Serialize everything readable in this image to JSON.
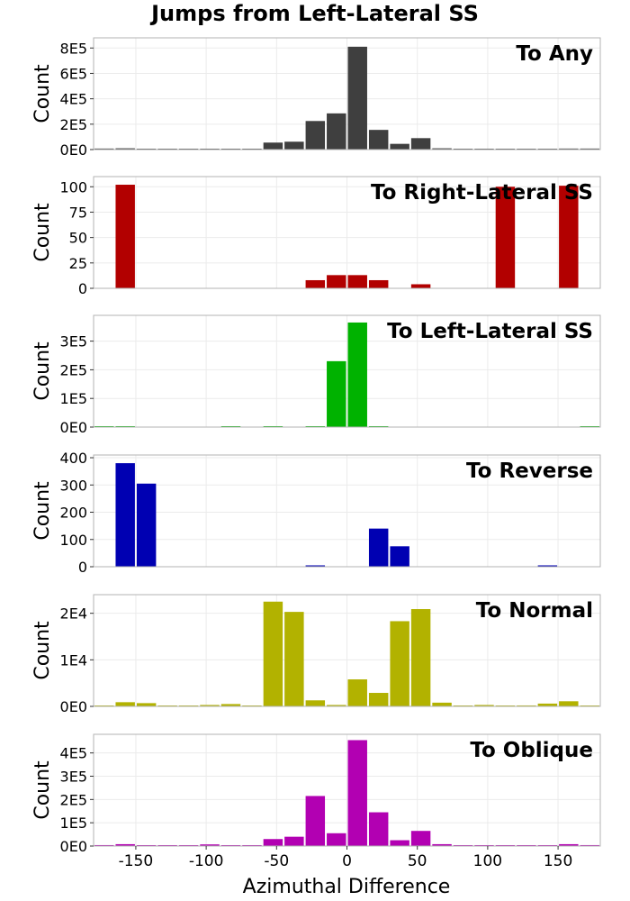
{
  "figure": {
    "title": "Jumps from Left-Lateral SS",
    "xlabel": "Azimuthal Difference",
    "ylabel": "Count",
    "xticks": [
      -150,
      -100,
      -50,
      0,
      50,
      100,
      150
    ],
    "xlim": [
      -180,
      180
    ]
  },
  "chart_data": [
    {
      "type": "bar",
      "title": "To Any",
      "color": "#3f3f3f",
      "bin_width": 15,
      "ylim": [
        0,
        880000
      ],
      "yticks": [
        0,
        200000,
        400000,
        600000,
        800000
      ],
      "ytick_labels": [
        "0E0",
        "2E5",
        "4E5",
        "6E5",
        "8E5"
      ],
      "x": [
        -172.5,
        -157.5,
        -142.5,
        -127.5,
        -112.5,
        -97.5,
        -82.5,
        -67.5,
        -52.5,
        -37.5,
        -22.5,
        -7.5,
        7.5,
        22.5,
        37.5,
        52.5,
        67.5,
        82.5,
        97.5,
        112.5,
        127.5,
        142.5,
        157.5,
        172.5
      ],
      "values": [
        8000,
        10000,
        4000,
        2000,
        2000,
        6000,
        3000,
        3000,
        55000,
        62000,
        225000,
        285000,
        810000,
        155000,
        45000,
        90000,
        10000,
        3000,
        2000,
        2000,
        2000,
        2000,
        8000,
        8000
      ]
    },
    {
      "type": "bar",
      "title": "To Right-Lateral SS",
      "color": "#b20000",
      "bin_width": 15,
      "ylim": [
        0,
        110
      ],
      "yticks": [
        0,
        25,
        50,
        75,
        100
      ],
      "ytick_labels": [
        "0",
        "25",
        "50",
        "75",
        "100"
      ],
      "x": [
        -172.5,
        -157.5,
        -142.5,
        -127.5,
        -112.5,
        -97.5,
        -82.5,
        -67.5,
        -52.5,
        -37.5,
        -22.5,
        -7.5,
        7.5,
        22.5,
        37.5,
        52.5,
        67.5,
        82.5,
        97.5,
        112.5,
        127.5,
        142.5,
        157.5,
        172.5
      ],
      "values": [
        0,
        102,
        0,
        0,
        0,
        0,
        0,
        0,
        0,
        0,
        8,
        13,
        13,
        8,
        0,
        4,
        0,
        0,
        0,
        100,
        0,
        0,
        101,
        0
      ]
    },
    {
      "type": "bar",
      "title": "To Left-Lateral SS",
      "color": "#00b200",
      "bin_width": 15,
      "ylim": [
        0,
        390000
      ],
      "yticks": [
        0,
        100000,
        200000,
        300000
      ],
      "ytick_labels": [
        "0E0",
        "1E5",
        "2E5",
        "3E5"
      ],
      "x": [
        -172.5,
        -157.5,
        -142.5,
        -127.5,
        -112.5,
        -97.5,
        -82.5,
        -67.5,
        -52.5,
        -37.5,
        -22.5,
        -7.5,
        7.5,
        22.5,
        37.5,
        52.5,
        67.5,
        82.5,
        97.5,
        112.5,
        127.5,
        142.5,
        157.5,
        172.5
      ],
      "values": [
        3000,
        1000,
        0,
        0,
        0,
        0,
        1000,
        0,
        1000,
        0,
        2000,
        230000,
        365000,
        2000,
        0,
        0,
        0,
        0,
        0,
        0,
        0,
        0,
        0,
        3000
      ]
    },
    {
      "type": "bar",
      "title": "To Reverse",
      "color": "#0000b2",
      "bin_width": 15,
      "ylim": [
        0,
        410
      ],
      "yticks": [
        0,
        100,
        200,
        300,
        400
      ],
      "ytick_labels": [
        "0",
        "100",
        "200",
        "300",
        "400"
      ],
      "x": [
        -172.5,
        -157.5,
        -142.5,
        -127.5,
        -112.5,
        -97.5,
        -82.5,
        -67.5,
        -52.5,
        -37.5,
        -22.5,
        -7.5,
        7.5,
        22.5,
        37.5,
        52.5,
        67.5,
        82.5,
        97.5,
        112.5,
        127.5,
        142.5,
        157.5,
        172.5
      ],
      "values": [
        0,
        380,
        305,
        0,
        0,
        0,
        0,
        0,
        0,
        0,
        5,
        0,
        0,
        140,
        75,
        0,
        0,
        0,
        0,
        0,
        0,
        5,
        0,
        0
      ]
    },
    {
      "type": "bar",
      "title": "To Normal",
      "color": "#b2b200",
      "bin_width": 15,
      "ylim": [
        0,
        24000
      ],
      "yticks": [
        0,
        10000,
        20000
      ],
      "ytick_labels": [
        "0E0",
        "1E4",
        "2E4"
      ],
      "x": [
        -172.5,
        -157.5,
        -142.5,
        -127.5,
        -112.5,
        -97.5,
        -82.5,
        -67.5,
        -52.5,
        -37.5,
        -22.5,
        -7.5,
        7.5,
        22.5,
        37.5,
        52.5,
        67.5,
        82.5,
        97.5,
        112.5,
        127.5,
        142.5,
        157.5,
        172.5
      ],
      "values": [
        100,
        900,
        700,
        100,
        100,
        300,
        500,
        100,
        22500,
        20300,
        1300,
        300,
        5800,
        2900,
        18300,
        20900,
        800,
        100,
        300,
        100,
        200,
        600,
        1100,
        100
      ]
    },
    {
      "type": "bar",
      "title": "To Oblique",
      "color": "#b200b2",
      "bin_width": 15,
      "ylim": [
        0,
        480000
      ],
      "yticks": [
        0,
        100000,
        200000,
        300000,
        400000
      ],
      "ytick_labels": [
        "0E0",
        "1E5",
        "2E5",
        "3E5",
        "4E5"
      ],
      "x": [
        -172.5,
        -157.5,
        -142.5,
        -127.5,
        -112.5,
        -97.5,
        -82.5,
        -67.5,
        -52.5,
        -37.5,
        -22.5,
        -7.5,
        7.5,
        22.5,
        37.5,
        52.5,
        67.5,
        82.5,
        97.5,
        112.5,
        127.5,
        142.5,
        157.5,
        172.5
      ],
      "values": [
        4000,
        8000,
        3000,
        1000,
        1000,
        7000,
        3000,
        3000,
        30000,
        40000,
        215000,
        55000,
        455000,
        145000,
        25000,
        65000,
        8000,
        3000,
        2000,
        1000,
        1000,
        2000,
        8000,
        4000
      ]
    }
  ]
}
